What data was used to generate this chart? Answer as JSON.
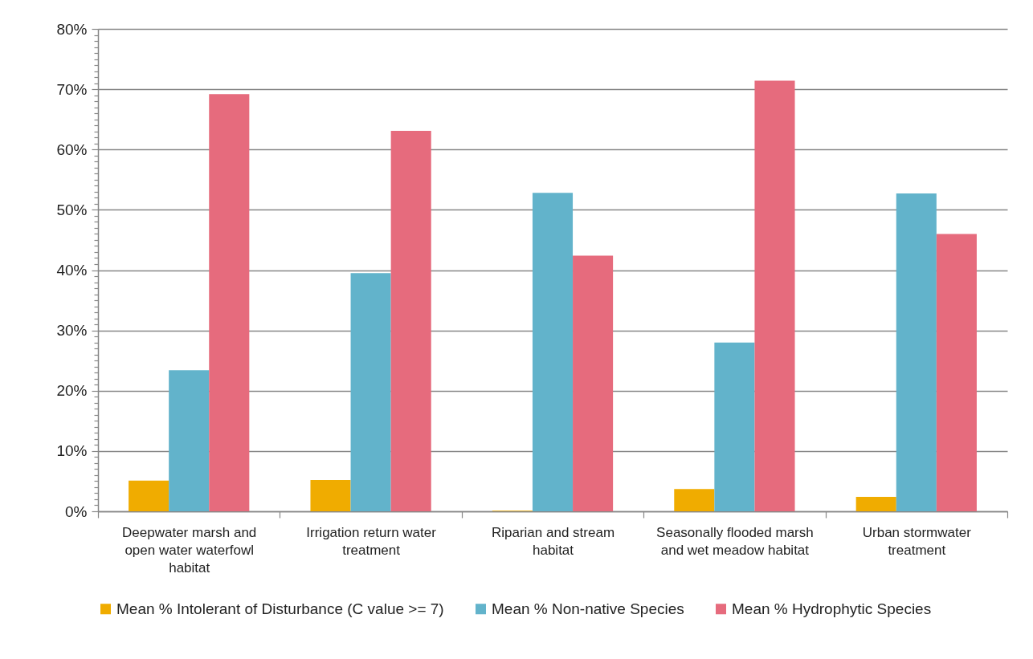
{
  "chart_data": {
    "type": "bar",
    "categories": [
      "Deepwater marsh and open water waterfowl habitat",
      "Irrigation return water treatment",
      "Riparian and stream habitat",
      "Seasonally flooded marsh and wet meadow habitat",
      "Urban stormwater treatment"
    ],
    "series": [
      {
        "name": "Mean % Intolerant of Disturbance (C value >= 7)",
        "color": "#f0ac00",
        "values": [
          5.1,
          5.2,
          0.1,
          3.7,
          2.4
        ]
      },
      {
        "name": "Mean % Non-native Species",
        "color": "#62b3cb",
        "values": [
          23.4,
          39.5,
          52.8,
          28.0,
          52.7
        ]
      },
      {
        "name": "Mean % Hydrophytic Species",
        "color": "#e66b7d",
        "values": [
          69.2,
          63.1,
          42.4,
          71.4,
          46.0
        ]
      }
    ],
    "ylim": [
      0,
      80
    ],
    "yticks": [
      {
        "value": 0,
        "label": "0%"
      },
      {
        "value": 1,
        "label": null
      },
      {
        "value": 2,
        "label": null
      },
      {
        "value": 3,
        "label": null
      },
      {
        "value": 4,
        "label": null
      },
      {
        "value": 5,
        "label": null
      },
      {
        "value": 6,
        "label": null
      },
      {
        "value": 7,
        "label": null
      },
      {
        "value": 8,
        "label": null
      },
      {
        "value": 9,
        "label": null
      },
      {
        "value": 10,
        "label": "10%"
      },
      {
        "value": 11,
        "label": null
      },
      {
        "value": 12,
        "label": null
      },
      {
        "value": 13,
        "label": null
      },
      {
        "value": 14,
        "label": null
      },
      {
        "value": 15,
        "label": null
      },
      {
        "value": 16,
        "label": null
      },
      {
        "value": 17,
        "label": null
      },
      {
        "value": 18,
        "label": null
      },
      {
        "value": 19,
        "label": null
      },
      {
        "value": 20,
        "label": "20%"
      },
      {
        "value": 21,
        "label": null
      },
      {
        "value": 22,
        "label": null
      },
      {
        "value": 23,
        "label": null
      },
      {
        "value": 24,
        "label": null
      },
      {
        "value": 25,
        "label": null
      },
      {
        "value": 26,
        "label": null
      },
      {
        "value": 27,
        "label": null
      },
      {
        "value": 28,
        "label": null
      },
      {
        "value": 29,
        "label": null
      },
      {
        "value": 30,
        "label": "30%"
      },
      {
        "value": 31,
        "label": null
      },
      {
        "value": 32,
        "label": null
      },
      {
        "value": 33,
        "label": null
      },
      {
        "value": 34,
        "label": null
      },
      {
        "value": 35,
        "label": null
      },
      {
        "value": 36,
        "label": null
      },
      {
        "value": 37,
        "label": null
      },
      {
        "value": 38,
        "label": null
      },
      {
        "value": 39,
        "label": null
      },
      {
        "value": 40,
        "label": "40%"
      },
      {
        "value": 41,
        "label": null
      },
      {
        "value": 42,
        "label": null
      },
      {
        "value": 43,
        "label": null
      },
      {
        "value": 44,
        "label": null
      },
      {
        "value": 45,
        "label": null
      },
      {
        "value": 46,
        "label": null
      },
      {
        "value": 47,
        "label": null
      },
      {
        "value": 48,
        "label": null
      },
      {
        "value": 49,
        "label": null
      },
      {
        "value": 50,
        "label": "50%"
      },
      {
        "value": 51,
        "label": null
      },
      {
        "value": 52,
        "label": null
      },
      {
        "value": 53,
        "label": null
      },
      {
        "value": 54,
        "label": null
      },
      {
        "value": 55,
        "label": null
      },
      {
        "value": 56,
        "label": null
      },
      {
        "value": 57,
        "label": null
      },
      {
        "value": 58,
        "label": null
      },
      {
        "value": 59,
        "label": null
      },
      {
        "value": 60,
        "label": "60%"
      },
      {
        "value": 61,
        "label": null
      },
      {
        "value": 62,
        "label": null
      },
      {
        "value": 63,
        "label": null
      },
      {
        "value": 64,
        "label": null
      },
      {
        "value": 65,
        "label": null
      },
      {
        "value": 66,
        "label": null
      },
      {
        "value": 67,
        "label": null
      },
      {
        "value": 68,
        "label": null
      },
      {
        "value": 69,
        "label": null
      },
      {
        "value": 70,
        "label": "70%"
      },
      {
        "value": 71,
        "label": null
      },
      {
        "value": 72,
        "label": null
      },
      {
        "value": 73,
        "label": null
      },
      {
        "value": 74,
        "label": null
      },
      {
        "value": 75,
        "label": null
      },
      {
        "value": 76,
        "label": null
      },
      {
        "value": 77,
        "label": null
      },
      {
        "value": 78,
        "label": null
      },
      {
        "value": 79,
        "label": null
      },
      {
        "value": 80,
        "label": "80%"
      }
    ],
    "grid": "y",
    "legend": "bottom"
  }
}
